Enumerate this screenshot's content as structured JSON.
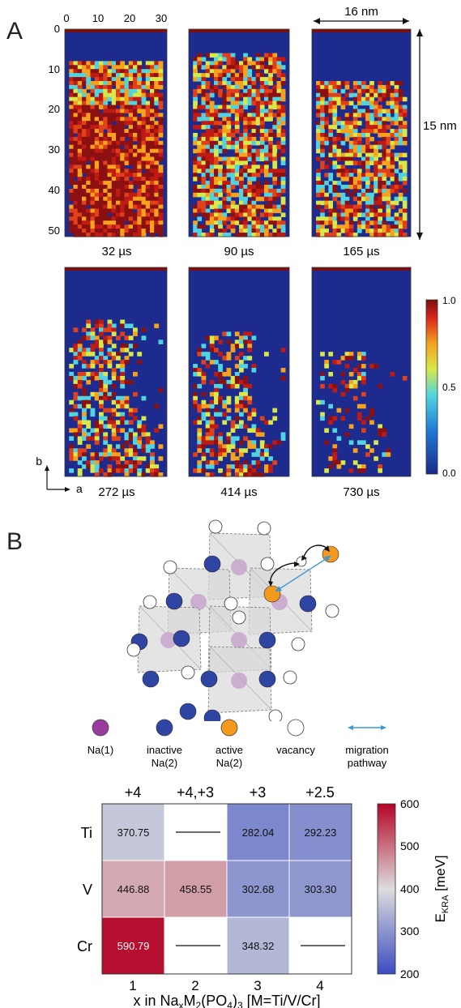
{
  "panel_a": {
    "label": "A",
    "top_axis_ticks": [
      "0",
      "10",
      "20",
      "30"
    ],
    "left_axis_ticks": [
      "0",
      "10",
      "20",
      "30",
      "40",
      "50"
    ],
    "width_label": "16 nm",
    "height_label": "15 nm",
    "times": [
      "32 µs",
      "90 µs",
      "165 µs",
      "272 µs",
      "414 µs",
      "730 µs"
    ],
    "colorbar_ticks": [
      "1.0",
      "0.5",
      "0.0"
    ],
    "axis_b": "b",
    "axis_a": "a"
  },
  "panel_b": {
    "label": "B",
    "legend": [
      {
        "name": "Na(1)",
        "color": "#9b3a9e"
      },
      {
        "name": "inactive\nNa(2)",
        "color": "#2e45a4"
      },
      {
        "name": "active\nNa(2)",
        "color": "#f39a1f"
      },
      {
        "name": "vacancy",
        "color": "#ffffff"
      },
      {
        "name": "migration\npathway",
        "color": "#3a98d6"
      }
    ]
  },
  "chart_data": {
    "type": "heatmap",
    "columns": [
      "+4",
      "+4,+3",
      "+3",
      "+2.5"
    ],
    "rows": [
      "Ti",
      "V",
      "Cr"
    ],
    "x_ticks": [
      "1",
      "2",
      "3",
      "4"
    ],
    "values": [
      [
        370.75,
        null,
        282.04,
        292.23
      ],
      [
        446.88,
        458.55,
        302.68,
        303.3
      ],
      [
        590.79,
        null,
        348.32,
        null
      ]
    ],
    "cell_labels": [
      [
        "370.75",
        "—",
        "282.04",
        "292.23"
      ],
      [
        "446.88",
        "458.55",
        "302.68",
        "303.30"
      ],
      [
        "590.79",
        "—",
        "348.32",
        "—"
      ]
    ],
    "xlabel": "x in NaxM2(PO4)3  [M=Ti/V/Cr]",
    "colorbar_label": "EKRA [meV]",
    "colorbar_ticks": [
      "600",
      "500",
      "400",
      "300",
      "200"
    ],
    "clim": [
      200,
      600
    ],
    "colormap": [
      "#3b4cc0",
      "#dddddd",
      "#b40426"
    ]
  }
}
